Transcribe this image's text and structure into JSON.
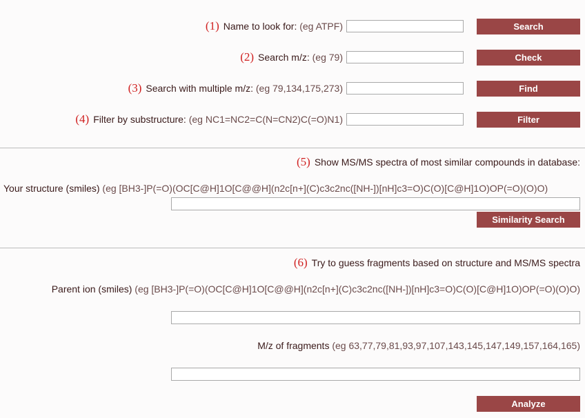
{
  "search_name": {
    "num": "(1)",
    "label": "Name to look for:",
    "eg": "(eg ATPF)",
    "value": "",
    "button": "Search"
  },
  "search_mz": {
    "num": "(2)",
    "label": "Search m/z:",
    "eg": "(eg 79)",
    "value": "",
    "button": "Check"
  },
  "search_multi": {
    "num": "(3)",
    "label": "Search with multiple m/z:",
    "eg": "(eg 79,134,175,273)",
    "value": "",
    "button": "Find"
  },
  "filter_sub": {
    "num": "(4)",
    "label": "Filter by substructure:",
    "eg": "(eg NC1=NC2=C(N=CN2)C(=O)N1)",
    "value": "",
    "button": "Filter"
  },
  "similar": {
    "num": "(5)",
    "heading": "Show MS/MS spectra of most similar compounds in database:",
    "label": "Your structure (smiles)",
    "eg": "(eg [BH3-]P(=O)(OC[C@H]1O[C@@H](n2c[n+](C)c3c2nc([NH-])[nH]c3=O)C(O)[C@H]1O)OP(=O)(O)O)",
    "value": "",
    "button": "Similarity Search"
  },
  "fragments": {
    "num": "(6)",
    "heading": "Try to guess fragments based on structure and MS/MS spectra",
    "parent_label": "Parent ion (smiles)",
    "parent_eg": "(eg [BH3-]P(=O)(OC[C@H]1O[C@@H](n2c[n+](C)c3c2nc([NH-])[nH]c3=O)C(O)[C@H]1O)OP(=O)(O)O)",
    "parent_value": "",
    "mz_label": "M/z of fragments",
    "mz_eg": "(eg 63,77,79,81,93,97,107,143,145,147,149,157,164,165)",
    "mz_value": "",
    "button": "Analyze"
  }
}
